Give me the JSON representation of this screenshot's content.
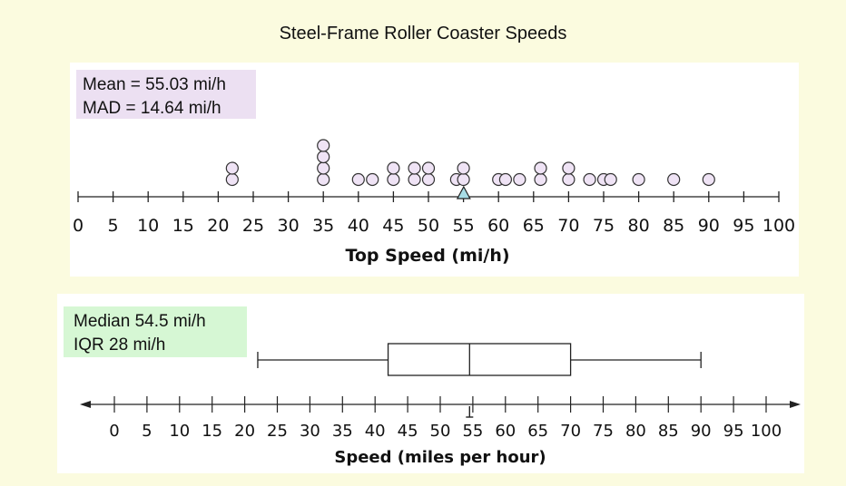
{
  "page": {
    "title": "Steel-Frame Roller Coaster Speeds"
  },
  "dot_panel": {
    "stats": [
      "Mean = 55.03 mi/h",
      "MAD = 14.64 mi/h"
    ]
  },
  "box_panel": {
    "stats": [
      "Median 54.5 mi/h",
      "IQR 28 mi/h"
    ]
  },
  "colors": {
    "background": "#fbfbdf",
    "dot_fill": "#efe3f5",
    "mean_marker": "#a8dde6",
    "dot_stats_bg": "#ece0f2",
    "box_stats_bg": "#d6f7d4"
  },
  "chart_data": [
    {
      "type": "scatter",
      "subtype": "dot-plot",
      "xlabel": "Top Speed (mi/h)",
      "xlim": [
        0,
        100
      ],
      "ticks": [
        0,
        5,
        10,
        15,
        20,
        25,
        30,
        35,
        40,
        45,
        50,
        55,
        60,
        65,
        70,
        75,
        80,
        85,
        90,
        95,
        100
      ],
      "values": [
        22,
        22,
        35,
        35,
        35,
        35,
        40,
        42,
        45,
        45,
        48,
        48,
        50,
        50,
        54,
        55,
        55,
        60,
        61,
        63,
        66,
        66,
        70,
        70,
        73,
        75,
        76,
        80,
        85,
        90
      ],
      "mean_marker": 55.03
    },
    {
      "type": "box",
      "xlabel": "Speed (miles per hour)",
      "xlim": [
        0,
        100
      ],
      "ticks": [
        0,
        5,
        10,
        15,
        20,
        25,
        30,
        35,
        40,
        45,
        50,
        55,
        60,
        65,
        70,
        75,
        80,
        85,
        90,
        95,
        100
      ],
      "min": 22,
      "q1": 42,
      "median": 54.5,
      "q3": 70,
      "max": 90,
      "median_marker": 54.5
    }
  ]
}
